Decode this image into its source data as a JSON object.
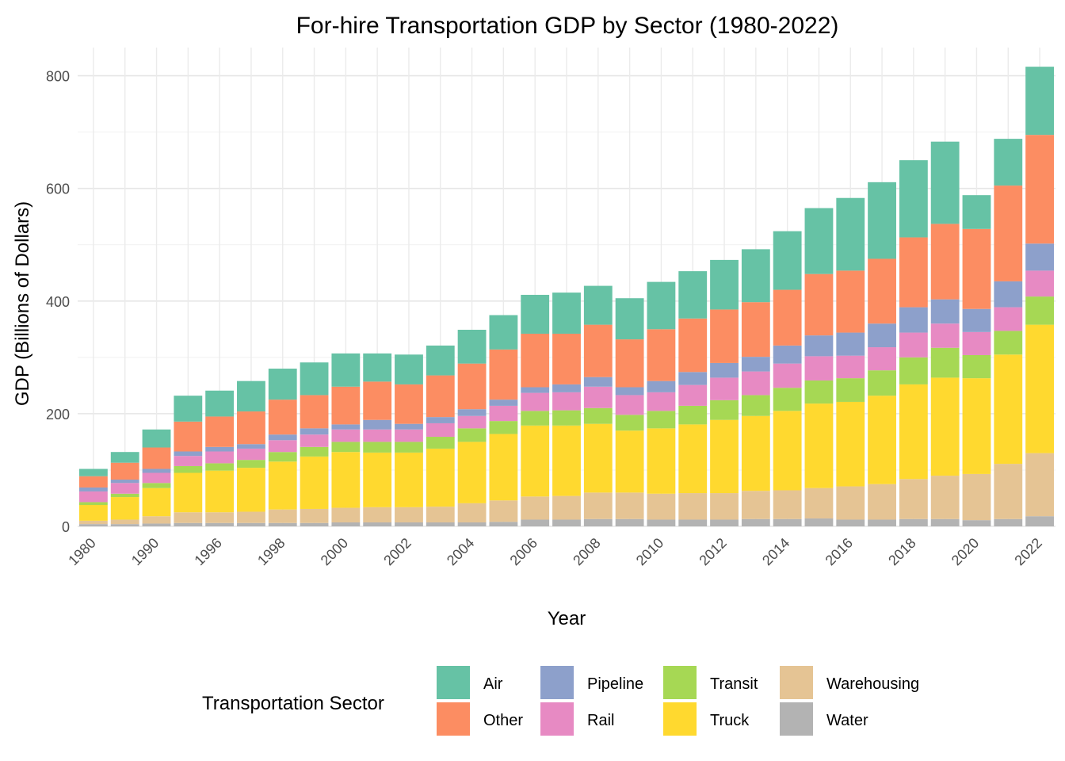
{
  "chart_data": {
    "type": "bar",
    "stacked": true,
    "title": "For-hire Transportation GDP by Sector (1980-2022)",
    "xlabel": "Year",
    "ylabel": "GDP (Billions of Dollars)",
    "ylim": [
      0,
      850
    ],
    "yticks": [
      0,
      200,
      400,
      600,
      800
    ],
    "grid": true,
    "legend_position": "bottom",
    "legend_title": "Transportation Sector",
    "categories": [
      "1980",
      "1985",
      "1990",
      "1995",
      "1996",
      "1997",
      "1998",
      "1999",
      "2000",
      "2001",
      "2002",
      "2003",
      "2004",
      "2005",
      "2006",
      "2007",
      "2008",
      "2009",
      "2010",
      "2011",
      "2012",
      "2013",
      "2014",
      "2015",
      "2016",
      "2017",
      "2018",
      "2019",
      "2020",
      "2021",
      "2022"
    ],
    "xtick_labels": [
      "1980",
      "1990",
      "1996",
      "1998",
      "2000",
      "2002",
      "2004",
      "2006",
      "2008",
      "2010",
      "2012",
      "2014",
      "2016",
      "2018",
      "2020",
      "2022"
    ],
    "xtick_indices": [
      0,
      2,
      4,
      6,
      8,
      10,
      12,
      14,
      16,
      18,
      20,
      22,
      24,
      26,
      28,
      30
    ],
    "series": [
      {
        "name": "Water",
        "color": "#B3B3B3",
        "values": [
          4,
          4,
          5,
          6,
          6,
          6,
          6,
          6,
          7,
          7,
          7,
          7,
          7,
          8,
          12,
          12,
          13,
          13,
          12,
          12,
          12,
          13,
          13,
          14,
          12,
          12,
          13,
          13,
          11,
          13,
          18
        ]
      },
      {
        "name": "Warehousing",
        "color": "#E5C494",
        "values": [
          6,
          8,
          13,
          19,
          19,
          20,
          24,
          25,
          26,
          27,
          27,
          28,
          34,
          38,
          41,
          42,
          47,
          47,
          46,
          47,
          47,
          50,
          51,
          54,
          59,
          63,
          71,
          77,
          82,
          98,
          112
        ]
      },
      {
        "name": "Truck",
        "color": "#FFD92F",
        "values": [
          28,
          40,
          50,
          70,
          74,
          78,
          85,
          93,
          99,
          97,
          97,
          103,
          109,
          118,
          126,
          125,
          122,
          110,
          116,
          122,
          130,
          133,
          141,
          150,
          150,
          157,
          168,
          174,
          170,
          194,
          228
        ]
      },
      {
        "name": "Transit",
        "color": "#A6D854",
        "values": [
          5,
          6,
          9,
          12,
          13,
          14,
          17,
          17,
          18,
          19,
          19,
          21,
          24,
          23,
          26,
          27,
          28,
          28,
          31,
          33,
          35,
          37,
          41,
          41,
          42,
          45,
          48,
          53,
          41,
          42,
          50
        ]
      },
      {
        "name": "Rail",
        "color": "#E78AC3",
        "values": [
          19,
          19,
          18,
          18,
          21,
          20,
          21,
          22,
          22,
          22,
          22,
          24,
          22,
          27,
          32,
          32,
          38,
          35,
          33,
          37,
          40,
          42,
          43,
          43,
          40,
          41,
          44,
          43,
          41,
          42,
          46
        ]
      },
      {
        "name": "Pipeline",
        "color": "#8DA0CB",
        "values": [
          7,
          6,
          7,
          8,
          8,
          8,
          10,
          11,
          9,
          17,
          10,
          11,
          12,
          11,
          10,
          14,
          17,
          14,
          20,
          23,
          26,
          26,
          32,
          37,
          41,
          42,
          45,
          43,
          41,
          46,
          48
        ]
      },
      {
        "name": "Other",
        "color": "#FC8D62",
        "values": [
          20,
          30,
          38,
          53,
          54,
          58,
          62,
          59,
          67,
          68,
          70,
          74,
          81,
          89,
          95,
          90,
          93,
          85,
          92,
          95,
          95,
          97,
          99,
          109,
          110,
          115,
          124,
          134,
          142,
          170,
          193
        ]
      },
      {
        "name": "Air",
        "color": "#66C2A5",
        "values": [
          13,
          19,
          32,
          46,
          46,
          54,
          55,
          58,
          59,
          50,
          53,
          53,
          60,
          61,
          69,
          73,
          69,
          73,
          84,
          84,
          88,
          94,
          104,
          117,
          129,
          136,
          137,
          146,
          60,
          83,
          121
        ]
      }
    ]
  }
}
